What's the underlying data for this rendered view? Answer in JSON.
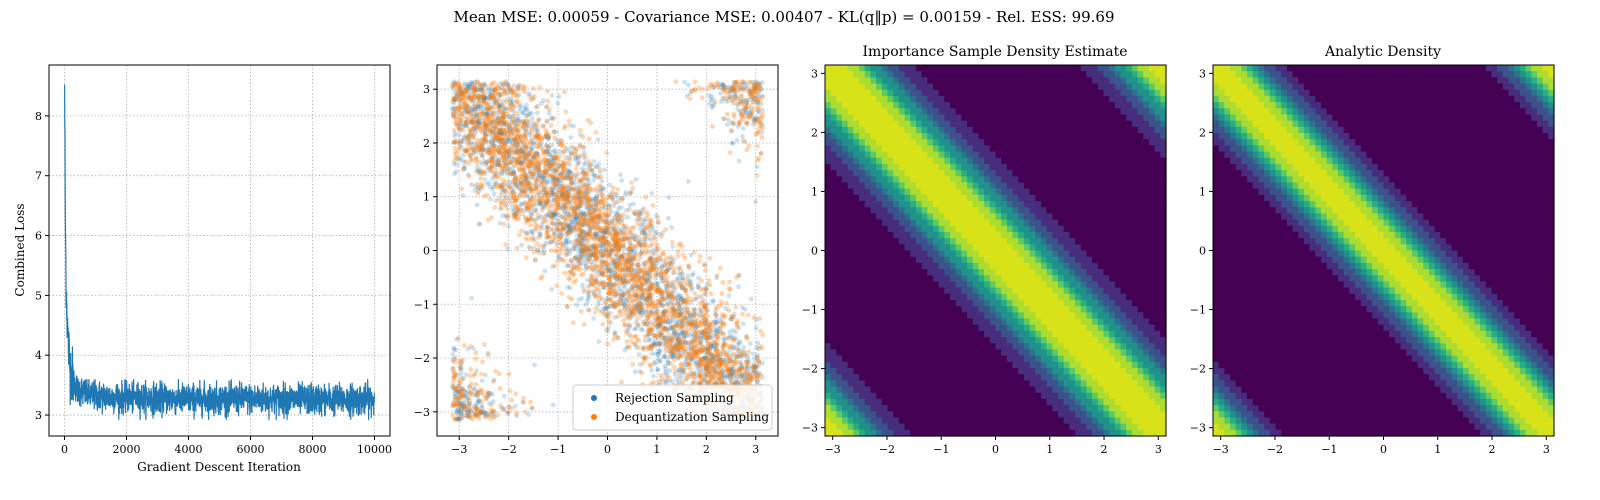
{
  "suptitle": "Mean MSE: 0.00059 - Covariance MSE: 0.00407 - KL(q‖p) = 0.00159 - Rel. ESS: 99.69",
  "chart_data": [
    {
      "type": "line",
      "title": "",
      "xlabel": "Gradient Descent Iteration",
      "ylabel": "Combined Loss",
      "xlim": [
        -500,
        10500
      ],
      "ylim": [
        2.65,
        8.85
      ],
      "xticks": [
        0,
        2000,
        4000,
        6000,
        8000,
        10000
      ],
      "yticks": [
        3,
        4,
        5,
        6,
        7,
        8
      ],
      "grid": true,
      "color": "#1f77b4",
      "series": [
        {
          "x": [
            0,
            10,
            20,
            30,
            50,
            75,
            100,
            150,
            200,
            300,
            400,
            600,
            800,
            1000,
            1500,
            2000,
            3000,
            4000,
            5000,
            6000,
            7000,
            8000,
            9000,
            10000
          ],
          "y": [
            8.6,
            7.9,
            7.0,
            6.1,
            5.3,
            4.8,
            4.4,
            4.0,
            3.75,
            3.55,
            3.45,
            3.38,
            3.34,
            3.32,
            3.3,
            3.29,
            3.28,
            3.27,
            3.27,
            3.27,
            3.26,
            3.26,
            3.26,
            3.26
          ],
          "noise_band": [
            3.0,
            3.6
          ]
        }
      ]
    },
    {
      "type": "scatter",
      "title": "",
      "xlim": [
        -3.45,
        3.45
      ],
      "ylim": [
        -3.45,
        3.45
      ],
      "xticks": [
        -3,
        -2,
        -1,
        0,
        1,
        2,
        3
      ],
      "yticks": [
        -3,
        -2,
        -1,
        0,
        1,
        2,
        3
      ],
      "grid": true,
      "legend_position": "bottom-right",
      "series": [
        {
          "name": "Rejection Sampling",
          "color": "#1f77b4",
          "n_points": 3000
        },
        {
          "name": "Dequantization Sampling",
          "color": "#ff7f0e",
          "n_points": 3000
        }
      ],
      "support": [
        -3.14159,
        3.14159
      ]
    },
    {
      "type": "heatmap",
      "title": "Importance Sample Density Estimate",
      "xlim": [
        -3.14159,
        3.14159
      ],
      "ylim": [
        -3.14159,
        3.14159
      ],
      "xticks": [
        -3,
        -2,
        -1,
        0,
        1,
        2,
        3
      ],
      "yticks": [
        -3,
        -2,
        -1,
        0,
        1,
        2,
        3
      ],
      "levels": [
        "#440154",
        "#472d7b",
        "#3b528b",
        "#2c728e",
        "#21918c",
        "#28ae80",
        "#5ec962",
        "#addc30",
        "#d8e219"
      ],
      "density": "wrapped-normal on x+y",
      "mean_sum": 0.0,
      "spread": 0.75
    },
    {
      "type": "heatmap",
      "title": "Analytic Density",
      "xlim": [
        -3.14159,
        3.14159
      ],
      "ylim": [
        -3.14159,
        3.14159
      ],
      "xticks": [
        -3,
        -2,
        -1,
        0,
        1,
        2,
        3
      ],
      "yticks": [
        -3,
        -2,
        -1,
        0,
        1,
        2,
        3
      ],
      "levels": [
        "#440154",
        "#472d7b",
        "#3b528b",
        "#2c728e",
        "#21918c",
        "#28ae80",
        "#5ec962",
        "#addc30",
        "#d8e219"
      ],
      "density": "wrapped-normal on x+y",
      "mean_sum": 0.0,
      "spread": 0.62
    }
  ]
}
